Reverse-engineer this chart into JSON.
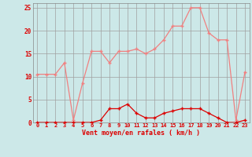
{
  "x": [
    0,
    1,
    2,
    3,
    4,
    5,
    6,
    7,
    8,
    9,
    10,
    11,
    12,
    13,
    14,
    15,
    16,
    17,
    18,
    19,
    20,
    21,
    22,
    23
  ],
  "rafales": [
    10.5,
    10.5,
    10.5,
    13,
    0.5,
    8.5,
    15.5,
    15.5,
    13,
    15.5,
    15.5,
    16,
    15,
    16,
    18,
    21,
    21,
    25,
    25,
    19.5,
    18,
    18,
    0.5,
    11
  ],
  "moyen": [
    0,
    0,
    0,
    0,
    0,
    0,
    0,
    0.5,
    3,
    3,
    4,
    2,
    1,
    1,
    2,
    2.5,
    3,
    3,
    3,
    2,
    1,
    0,
    0,
    0.5
  ],
  "bg_color": "#cce8e8",
  "grid_color": "#a0a0a0",
  "line_color_rafales": "#f08080",
  "line_color_moyen": "#dd0000",
  "xlabel": "Vent moyen/en rafales ( km/h )",
  "ylim": [
    0,
    26
  ],
  "yticks": [
    0,
    5,
    10,
    15,
    20,
    25
  ],
  "xticks": [
    0,
    1,
    2,
    3,
    4,
    5,
    6,
    7,
    8,
    9,
    10,
    11,
    12,
    13,
    14,
    15,
    16,
    17,
    18,
    19,
    20,
    21,
    22,
    23
  ]
}
